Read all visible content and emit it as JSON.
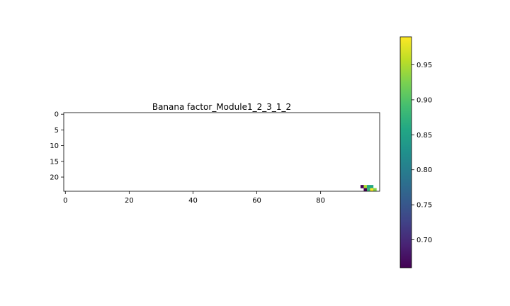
{
  "chart_data": {
    "type": "heatmap",
    "title": "Banana factor_Module1_2_3_1_2",
    "xlabel": "",
    "ylabel": "",
    "x_ticks": [
      0,
      20,
      40,
      60,
      80
    ],
    "y_ticks": [
      0,
      5,
      10,
      15,
      20
    ],
    "extent": {
      "columns": 99,
      "rows": 25
    },
    "cells": [
      {
        "col": 93,
        "row": 23,
        "value": 0.66
      },
      {
        "col": 94,
        "row": 23,
        "value": 0.95
      },
      {
        "col": 95,
        "row": 23,
        "value": 0.86
      },
      {
        "col": 96,
        "row": 23,
        "value": 0.86
      },
      {
        "col": 94,
        "row": 24,
        "value": 0.66
      },
      {
        "col": 95,
        "row": 24,
        "value": 0.88
      },
      {
        "col": 96,
        "row": 24,
        "value": 0.99
      },
      {
        "col": 97,
        "row": 24,
        "value": 0.93
      }
    ],
    "colorbar": {
      "colormap": "viridis",
      "vmin": 0.66,
      "vmax": 0.99,
      "ticks": [
        0.7,
        0.75,
        0.8,
        0.85,
        0.9,
        0.95
      ],
      "tick_labels": [
        "0.70",
        "0.75",
        "0.80",
        "0.85",
        "0.90",
        "0.95"
      ]
    },
    "grid": false
  }
}
